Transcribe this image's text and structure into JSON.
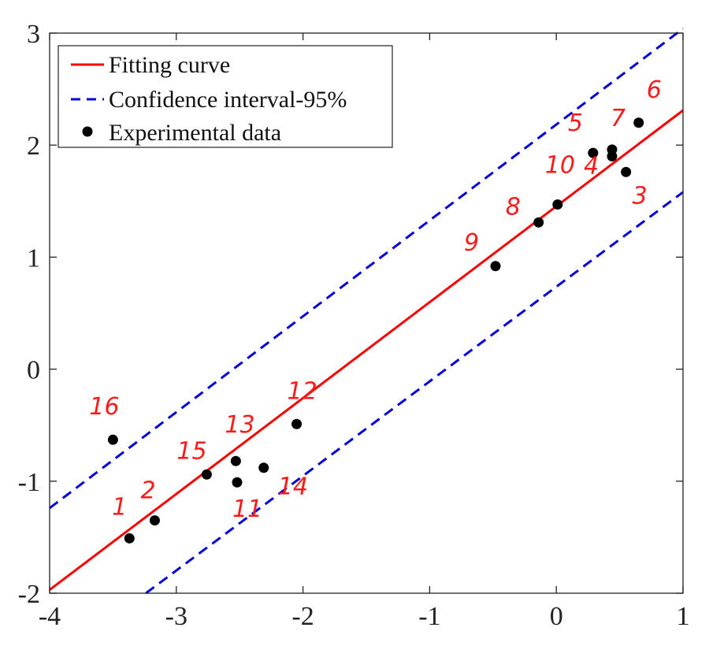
{
  "chart_data": {
    "type": "scatter",
    "title": "",
    "xlabel": "",
    "ylabel": "",
    "xlim": [
      -4,
      1
    ],
    "ylim": [
      -2,
      3
    ],
    "xticks": [
      "-4",
      "-3",
      "-2",
      "-1",
      "0",
      "1"
    ],
    "yticks": [
      "-2",
      "-1",
      "0",
      "1",
      "2",
      "3"
    ],
    "grid": false,
    "legend_position": "top-left",
    "legend": [
      "Fitting curve",
      "Confidence interval-95%",
      "Experimental data"
    ],
    "series": [
      {
        "name": "Fitting curve",
        "kind": "line",
        "color": "#ff0000",
        "x": [
          -4,
          1
        ],
        "y": [
          -1.97,
          2.31
        ]
      },
      {
        "name": "Confidence interval-95%",
        "kind": "dashed-line",
        "color": "#0000dd",
        "x": [
          -4,
          1
        ],
        "y": [
          -1.24,
          3.04
        ]
      },
      {
        "kind": "dashed-line",
        "color": "#0000dd",
        "x": [
          -3.24,
          1
        ],
        "y": [
          -2.0,
          1.58
        ]
      },
      {
        "name": "Experimental data",
        "kind": "points",
        "color": "#000000",
        "x": [
          -3.37,
          -3.17,
          0.55,
          0.44,
          0.29,
          0.65,
          0.44,
          -0.14,
          -0.48,
          0.01,
          -2.52,
          -2.05,
          -2.53,
          -2.31,
          -2.76,
          -3.5
        ],
        "y": [
          -1.51,
          -1.35,
          1.76,
          1.9,
          1.93,
          2.2,
          1.96,
          1.31,
          0.92,
          1.47,
          -1.01,
          -0.49,
          -0.82,
          -0.88,
          -0.94,
          -0.63
        ]
      }
    ],
    "annotations": [
      "1",
      "2",
      "3",
      "4",
      "5",
      "6",
      "7",
      "8",
      "9",
      "10",
      "11",
      "12",
      "13",
      "14",
      "15",
      "16"
    ]
  }
}
